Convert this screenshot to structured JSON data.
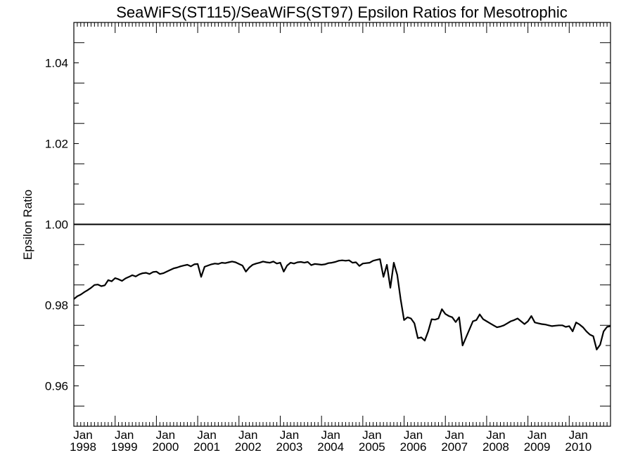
{
  "chart_data": {
    "type": "line",
    "title": "SeaWiFS(ST115)/SeaWiFS(ST97)  Epsilon Ratios for Mesotrophic",
    "xlabel": "",
    "ylabel": "Epsilon Ratio",
    "xlim": [
      "1998-01",
      "2011-01"
    ],
    "ylim": [
      0.95,
      1.05
    ],
    "yticks": [
      "0.96",
      "0.98",
      "1.00",
      "1.02",
      "1.04"
    ],
    "xticks": [
      {
        "month": "Jan",
        "year": "1998"
      },
      {
        "month": "Jan",
        "year": "1999"
      },
      {
        "month": "Jan",
        "year": "2000"
      },
      {
        "month": "Jan",
        "year": "2001"
      },
      {
        "month": "Jan",
        "year": "2002"
      },
      {
        "month": "Jan",
        "year": "2003"
      },
      {
        "month": "Jan",
        "year": "2004"
      },
      {
        "month": "Jan",
        "year": "2005"
      },
      {
        "month": "Jan",
        "year": "2006"
      },
      {
        "month": "Jan",
        "year": "2007"
      },
      {
        "month": "Jan",
        "year": "2008"
      },
      {
        "month": "Jan",
        "year": "2009"
      },
      {
        "month": "Jan",
        "year": "2010"
      }
    ],
    "reference_line": {
      "y": 1.0
    },
    "grid": false,
    "series": [
      {
        "values": [
          [
            "1998-01",
            0.9815
          ],
          [
            "1998-02",
            0.9822
          ],
          [
            "1998-03",
            0.9826
          ],
          [
            "1998-04",
            0.9832
          ],
          [
            "1998-05",
            0.9837
          ],
          [
            "1998-06",
            0.9843
          ],
          [
            "1998-07",
            0.985
          ],
          [
            "1998-08",
            0.9851
          ],
          [
            "1998-09",
            0.9847
          ],
          [
            "1998-10",
            0.9849
          ],
          [
            "1998-11",
            0.9862
          ],
          [
            "1998-12",
            0.9859
          ],
          [
            "1999-01",
            0.9867
          ],
          [
            "1999-02",
            0.9864
          ],
          [
            "1999-03",
            0.986
          ],
          [
            "1999-04",
            0.9866
          ],
          [
            "1999-05",
            0.987
          ],
          [
            "1999-06",
            0.9874
          ],
          [
            "1999-07",
            0.9871
          ],
          [
            "1999-08",
            0.9876
          ],
          [
            "1999-09",
            0.9879
          ],
          [
            "1999-10",
            0.988
          ],
          [
            "1999-11",
            0.9877
          ],
          [
            "1999-12",
            0.9882
          ],
          [
            "2000-01",
            0.9883
          ],
          [
            "2000-02",
            0.9877
          ],
          [
            "2000-03",
            0.9879
          ],
          [
            "2000-04",
            0.9883
          ],
          [
            "2000-05",
            0.9887
          ],
          [
            "2000-06",
            0.9891
          ],
          [
            "2000-07",
            0.9893
          ],
          [
            "2000-08",
            0.9896
          ],
          [
            "2000-09",
            0.9898
          ],
          [
            "2000-10",
            0.99
          ],
          [
            "2000-11",
            0.9896
          ],
          [
            "2000-12",
            0.9901
          ],
          [
            "2001-01",
            0.9902
          ],
          [
            "2001-02",
            0.987
          ],
          [
            "2001-03",
            0.9895
          ],
          [
            "2001-04",
            0.9898
          ],
          [
            "2001-05",
            0.9901
          ],
          [
            "2001-06",
            0.9903
          ],
          [
            "2001-07",
            0.9902
          ],
          [
            "2001-08",
            0.9905
          ],
          [
            "2001-09",
            0.9904
          ],
          [
            "2001-10",
            0.9906
          ],
          [
            "2001-11",
            0.9908
          ],
          [
            "2001-12",
            0.9906
          ],
          [
            "2002-01",
            0.9902
          ],
          [
            "2002-02",
            0.9898
          ],
          [
            "2002-03",
            0.9883
          ],
          [
            "2002-04",
            0.9893
          ],
          [
            "2002-05",
            0.99
          ],
          [
            "2002-06",
            0.9903
          ],
          [
            "2002-07",
            0.9905
          ],
          [
            "2002-08",
            0.9908
          ],
          [
            "2002-09",
            0.9906
          ],
          [
            "2002-10",
            0.9905
          ],
          [
            "2002-11",
            0.9908
          ],
          [
            "2002-12",
            0.9903
          ],
          [
            "2003-01",
            0.9905
          ],
          [
            "2003-02",
            0.9883
          ],
          [
            "2003-03",
            0.9898
          ],
          [
            "2003-04",
            0.9905
          ],
          [
            "2003-05",
            0.9903
          ],
          [
            "2003-06",
            0.9906
          ],
          [
            "2003-07",
            0.9907
          ],
          [
            "2003-08",
            0.9905
          ],
          [
            "2003-09",
            0.9907
          ],
          [
            "2003-10",
            0.9899
          ],
          [
            "2003-11",
            0.9902
          ],
          [
            "2003-12",
            0.9901
          ],
          [
            "2004-01",
            0.99
          ],
          [
            "2004-02",
            0.9901
          ],
          [
            "2004-03",
            0.9904
          ],
          [
            "2004-04",
            0.9905
          ],
          [
            "2004-05",
            0.9907
          ],
          [
            "2004-06",
            0.991
          ],
          [
            "2004-07",
            0.9911
          ],
          [
            "2004-08",
            0.991
          ],
          [
            "2004-09",
            0.9911
          ],
          [
            "2004-10",
            0.9905
          ],
          [
            "2004-11",
            0.9906
          ],
          [
            "2004-12",
            0.9897
          ],
          [
            "2005-01",
            0.9903
          ],
          [
            "2005-02",
            0.9904
          ],
          [
            "2005-03",
            0.9905
          ],
          [
            "2005-04",
            0.991
          ],
          [
            "2005-05",
            0.9912
          ],
          [
            "2005-06",
            0.9914
          ],
          [
            "2005-07",
            0.987
          ],
          [
            "2005-08",
            0.99
          ],
          [
            "2005-09",
            0.9843
          ],
          [
            "2005-10",
            0.9905
          ],
          [
            "2005-11",
            0.9875
          ],
          [
            "2005-12",
            0.9815
          ],
          [
            "2006-01",
            0.9763
          ],
          [
            "2006-02",
            0.977
          ],
          [
            "2006-03",
            0.9767
          ],
          [
            "2006-04",
            0.9755
          ],
          [
            "2006-05",
            0.9718
          ],
          [
            "2006-06",
            0.972
          ],
          [
            "2006-07",
            0.9712
          ],
          [
            "2006-08",
            0.9735
          ],
          [
            "2006-09",
            0.9765
          ],
          [
            "2006-10",
            0.9764
          ],
          [
            "2006-11",
            0.9767
          ],
          [
            "2006-12",
            0.979
          ],
          [
            "2007-01",
            0.9778
          ],
          [
            "2007-02",
            0.9773
          ],
          [
            "2007-03",
            0.977
          ],
          [
            "2007-04",
            0.9758
          ],
          [
            "2007-05",
            0.977
          ],
          [
            "2007-06",
            0.97
          ],
          [
            "2007-07",
            0.972
          ],
          [
            "2007-08",
            0.974
          ],
          [
            "2007-09",
            0.976
          ],
          [
            "2007-10",
            0.9763
          ],
          [
            "2007-11",
            0.9777
          ],
          [
            "2007-12",
            0.9765
          ],
          [
            "2008-01",
            0.976
          ],
          [
            "2008-02",
            0.9755
          ],
          [
            "2008-03",
            0.975
          ],
          [
            "2008-04",
            0.9745
          ],
          [
            "2008-05",
            0.9747
          ],
          [
            "2008-06",
            0.975
          ],
          [
            "2008-07",
            0.9755
          ],
          [
            "2008-08",
            0.976
          ],
          [
            "2008-09",
            0.9763
          ],
          [
            "2008-10",
            0.9767
          ],
          [
            "2008-11",
            0.976
          ],
          [
            "2008-12",
            0.9753
          ],
          [
            "2009-01",
            0.976
          ],
          [
            "2009-02",
            0.9773
          ],
          [
            "2009-03",
            0.9757
          ],
          [
            "2009-04",
            0.9755
          ],
          [
            "2009-05",
            0.9753
          ],
          [
            "2009-06",
            0.9752
          ],
          [
            "2009-07",
            0.975
          ],
          [
            "2009-08",
            0.9748
          ],
          [
            "2009-09",
            0.9749
          ],
          [
            "2009-10",
            0.975
          ],
          [
            "2009-11",
            0.975
          ],
          [
            "2009-12",
            0.9746
          ],
          [
            "2010-01",
            0.9748
          ],
          [
            "2010-02",
            0.9735
          ],
          [
            "2010-03",
            0.9757
          ],
          [
            "2010-04",
            0.9752
          ],
          [
            "2010-05",
            0.9745
          ],
          [
            "2010-06",
            0.9735
          ],
          [
            "2010-07",
            0.9727
          ],
          [
            "2010-08",
            0.9723
          ],
          [
            "2010-09",
            0.969
          ],
          [
            "2010-10",
            0.9702
          ],
          [
            "2010-11",
            0.9735
          ],
          [
            "2010-12",
            0.9746
          ],
          [
            "2011-01",
            0.9748
          ]
        ]
      }
    ]
  }
}
